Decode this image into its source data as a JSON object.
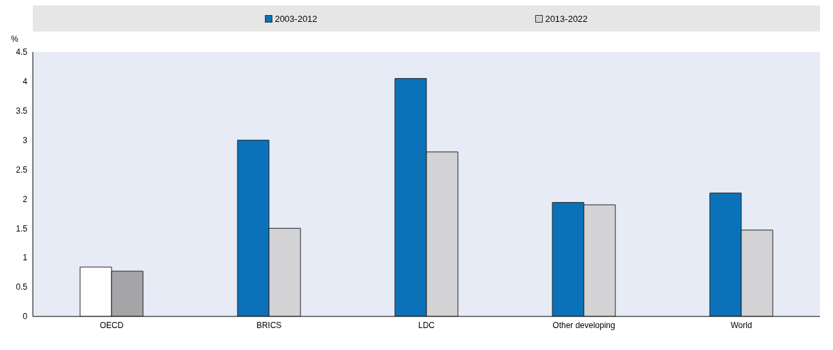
{
  "chart_data": {
    "type": "bar",
    "ylabel": "%",
    "categories": [
      "OECD",
      "BRICS",
      "LDC",
      "Other developing",
      "World"
    ],
    "series": [
      {
        "name": "2003-2012",
        "color": "#0b72b9",
        "colors": [
          "#ffffff",
          "#0b72b9",
          "#0b72b9",
          "#0b72b9",
          "#0b72b9"
        ],
        "values": [
          0.84,
          3.0,
          4.05,
          1.94,
          2.1
        ]
      },
      {
        "name": "2013-2022",
        "color": "#d3d3d5",
        "colors": [
          "#a5a5a8",
          "#d3d3d5",
          "#d3d3d5",
          "#d3d3d5",
          "#d3d3d5"
        ],
        "values": [
          0.77,
          1.5,
          2.8,
          1.9,
          1.47
        ]
      }
    ],
    "ylim": [
      0,
      4.5
    ],
    "yticks": [
      0,
      0.5,
      1,
      1.5,
      2,
      2.5,
      3,
      3.5,
      4,
      4.5
    ],
    "grid": false,
    "legend": "top"
  }
}
